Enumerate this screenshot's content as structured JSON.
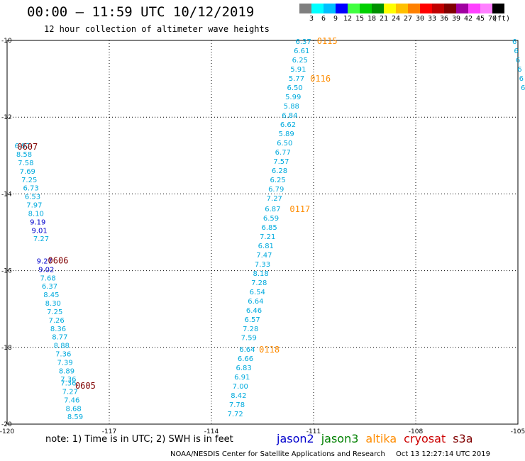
{
  "header": {
    "title": "00:00 – 11:59 UTC 10/12/2019",
    "subtitle": "12 hour collection of altimeter wave heights"
  },
  "legend": {
    "colors": [
      "#7f7f7f",
      "#00ffff",
      "#00bfff",
      "#0000ff",
      "#40ff40",
      "#00d000",
      "#009000",
      "#ffff00",
      "#ffc000",
      "#ff8000",
      "#ff0000",
      "#c00000",
      "#800000",
      "#a000a0",
      "#ff40ff",
      "#ff80ff",
      "#000000"
    ],
    "labels": [
      "3",
      "6",
      "9",
      "12",
      "15",
      "18",
      "21",
      "24",
      "27",
      "30",
      "33",
      "36",
      "39",
      "42",
      "45",
      "70",
      "(ft)"
    ]
  },
  "map": {
    "x_ticks": [
      "-120",
      "-117",
      "-114",
      "-111",
      "-108",
      "-105"
    ],
    "y_ticks": [
      "-10",
      "-12",
      "-14",
      "-16",
      "-18",
      "-20"
    ],
    "x_range": [
      -120,
      -105
    ],
    "y_range": [
      -20,
      -10
    ]
  },
  "colors": {
    "jason2": "#0000cc",
    "jason3": "#008000",
    "altika": "#ff8c00",
    "cryosat": "#cc0000",
    "s3a": "#800000",
    "obs_cyan": "#00aadd",
    "obs_blue": "#0000cc"
  },
  "passes": [
    {
      "label": "0607",
      "satellite": "s3a",
      "label_pos": {
        "lon": -119.4,
        "lat": -12.75
      },
      "points": [
        {
          "lon": -119.55,
          "lat": -12.74,
          "v": "6.97",
          "c": "obs_cyan"
        },
        {
          "lon": -119.5,
          "lat": -12.96,
          "v": "8.58",
          "c": "obs_cyan"
        },
        {
          "lon": -119.45,
          "lat": -13.18,
          "v": "7.58",
          "c": "obs_cyan"
        },
        {
          "lon": -119.4,
          "lat": -13.4,
          "v": "7.69",
          "c": "obs_cyan"
        },
        {
          "lon": -119.35,
          "lat": -13.62,
          "v": "7.25",
          "c": "obs_cyan"
        },
        {
          "lon": -119.3,
          "lat": -13.84,
          "v": "6.73",
          "c": "obs_cyan"
        },
        {
          "lon": -119.25,
          "lat": -14.06,
          "v": "6.53",
          "c": "obs_cyan"
        },
        {
          "lon": -119.2,
          "lat": -14.28,
          "v": "7.97",
          "c": "obs_cyan"
        },
        {
          "lon": -119.15,
          "lat": -14.5,
          "v": "8.10",
          "c": "obs_cyan"
        },
        {
          "lon": -119.1,
          "lat": -14.72,
          "v": "9.19",
          "c": "obs_blue"
        },
        {
          "lon": -119.05,
          "lat": -14.94,
          "v": "9.01",
          "c": "obs_blue"
        },
        {
          "lon": -119.0,
          "lat": -15.16,
          "v": "7.27",
          "c": "obs_cyan"
        }
      ]
    },
    {
      "label": "0606",
      "satellite": "s3a",
      "label_pos": {
        "lon": -118.5,
        "lat": -15.72
      },
      "points": [
        {
          "lon": -118.9,
          "lat": -15.74,
          "v": "9.27",
          "c": "obs_blue"
        },
        {
          "lon": -118.85,
          "lat": -15.96,
          "v": "9.02",
          "c": "obs_blue"
        },
        {
          "lon": -118.8,
          "lat": -16.18,
          "v": "7.68",
          "c": "obs_cyan"
        },
        {
          "lon": -118.75,
          "lat": -16.4,
          "v": "6.37",
          "c": "obs_cyan"
        },
        {
          "lon": -118.7,
          "lat": -16.62,
          "v": "8.45",
          "c": "obs_cyan"
        },
        {
          "lon": -118.65,
          "lat": -16.84,
          "v": "8.30",
          "c": "obs_cyan"
        },
        {
          "lon": -118.6,
          "lat": -17.06,
          "v": "7.25",
          "c": "obs_cyan"
        },
        {
          "lon": -118.55,
          "lat": -17.28,
          "v": "7.26",
          "c": "obs_cyan"
        },
        {
          "lon": -118.5,
          "lat": -17.5,
          "v": "8.36",
          "c": "obs_cyan"
        },
        {
          "lon": -118.45,
          "lat": -17.72,
          "v": "8.77",
          "c": "obs_cyan"
        },
        {
          "lon": -118.4,
          "lat": -17.94,
          "v": "8.88",
          "c": "obs_cyan"
        },
        {
          "lon": -118.35,
          "lat": -18.16,
          "v": "7.36",
          "c": "obs_cyan"
        },
        {
          "lon": -118.3,
          "lat": -18.38,
          "v": "7.39",
          "c": "obs_cyan"
        },
        {
          "lon": -118.25,
          "lat": -18.6,
          "v": "8.89",
          "c": "obs_cyan"
        }
      ]
    },
    {
      "label": "0605",
      "satellite": "s3a",
      "label_pos": {
        "lon": -117.7,
        "lat": -18.98
      },
      "points": [
        {
          "lon": -118.2,
          "lat": -18.82,
          "v": "7.36",
          "c": "obs_cyan"
        },
        {
          "lon": -118.2,
          "lat": -18.92,
          "v": "7.36",
          "c": "obs_cyan"
        },
        {
          "lon": -118.15,
          "lat": -19.14,
          "v": "7.27",
          "c": "obs_cyan"
        },
        {
          "lon": -118.1,
          "lat": -19.36,
          "v": "7.46",
          "c": "obs_cyan"
        },
        {
          "lon": -118.05,
          "lat": -19.58,
          "v": "8.68",
          "c": "obs_cyan"
        },
        {
          "lon": -118.0,
          "lat": -19.8,
          "v": "8.59",
          "c": "obs_cyan"
        }
      ]
    },
    {
      "label": "0115",
      "satellite": "altika",
      "label_pos": {
        "lon": -110.6,
        "lat": -10.0
      },
      "points": [
        {
          "lon": -111.3,
          "lat": -10.02,
          "v": "6.37",
          "c": "obs_cyan"
        },
        {
          "lon": -111.35,
          "lat": -10.26,
          "v": "6.61",
          "c": "obs_cyan"
        },
        {
          "lon": -111.4,
          "lat": -10.5,
          "v": "6.25",
          "c": "obs_cyan"
        },
        {
          "lon": -111.45,
          "lat": -10.74,
          "v": "5.91",
          "c": "obs_cyan"
        }
      ]
    },
    {
      "label": "0116",
      "satellite": "altika",
      "label_pos": {
        "lon": -110.8,
        "lat": -10.98
      },
      "points": [
        {
          "lon": -111.5,
          "lat": -10.98,
          "v": "5.77",
          "c": "obs_cyan"
        },
        {
          "lon": -111.55,
          "lat": -11.22,
          "v": "6.50",
          "c": "obs_cyan"
        },
        {
          "lon": -111.6,
          "lat": -11.46,
          "v": "5.99",
          "c": "obs_cyan"
        },
        {
          "lon": -111.65,
          "lat": -11.7,
          "v": "5.88",
          "c": "obs_cyan"
        },
        {
          "lon": -111.7,
          "lat": -11.94,
          "v": "6.84",
          "c": "obs_cyan"
        },
        {
          "lon": -111.75,
          "lat": -12.18,
          "v": "6.62",
          "c": "obs_cyan"
        },
        {
          "lon": -111.8,
          "lat": -12.42,
          "v": "5.89",
          "c": "obs_cyan"
        },
        {
          "lon": -111.85,
          "lat": -12.66,
          "v": "6.50",
          "c": "obs_cyan"
        },
        {
          "lon": -111.9,
          "lat": -12.9,
          "v": "6.77",
          "c": "obs_cyan"
        },
        {
          "lon": -111.95,
          "lat": -13.14,
          "v": "7.57",
          "c": "obs_cyan"
        },
        {
          "lon": -112.0,
          "lat": -13.38,
          "v": "6.28",
          "c": "obs_cyan"
        },
        {
          "lon": -112.05,
          "lat": -13.62,
          "v": "6.25",
          "c": "obs_cyan"
        },
        {
          "lon": -112.1,
          "lat": -13.86,
          "v": "6.79",
          "c": "obs_cyan"
        },
        {
          "lon": -112.15,
          "lat": -14.1,
          "v": "7.27",
          "c": "obs_cyan"
        }
      ]
    },
    {
      "label": "0117",
      "satellite": "altika",
      "label_pos": {
        "lon": -111.4,
        "lat": -14.38
      },
      "points": [
        {
          "lon": -112.2,
          "lat": -14.38,
          "v": "6.87",
          "c": "obs_cyan"
        },
        {
          "lon": -112.25,
          "lat": -14.62,
          "v": "6.59",
          "c": "obs_cyan"
        },
        {
          "lon": -112.3,
          "lat": -14.86,
          "v": "6.85",
          "c": "obs_cyan"
        },
        {
          "lon": -112.35,
          "lat": -15.1,
          "v": "7.21",
          "c": "obs_cyan"
        },
        {
          "lon": -112.4,
          "lat": -15.34,
          "v": "6.81",
          "c": "obs_cyan"
        },
        {
          "lon": -112.45,
          "lat": -15.58,
          "v": "7.47",
          "c": "obs_cyan"
        },
        {
          "lon": -112.5,
          "lat": -15.82,
          "v": "7.33",
          "c": "obs_cyan"
        },
        {
          "lon": -112.55,
          "lat": -16.06,
          "v": "8.18",
          "c": "obs_cyan"
        },
        {
          "lon": -112.6,
          "lat": -16.3,
          "v": "7.28",
          "c": "obs_cyan"
        },
        {
          "lon": -112.65,
          "lat": -16.54,
          "v": "6.54",
          "c": "obs_cyan"
        },
        {
          "lon": -112.7,
          "lat": -16.78,
          "v": "6.64",
          "c": "obs_cyan"
        },
        {
          "lon": -112.75,
          "lat": -17.02,
          "v": "6.46",
          "c": "obs_cyan"
        },
        {
          "lon": -112.8,
          "lat": -17.26,
          "v": "6.57",
          "c": "obs_cyan"
        },
        {
          "lon": -112.85,
          "lat": -17.5,
          "v": "7.28",
          "c": "obs_cyan"
        },
        {
          "lon": -112.9,
          "lat": -17.74,
          "v": "7.59",
          "c": "obs_cyan"
        }
      ]
    },
    {
      "label": "0118",
      "satellite": "altika",
      "label_pos": {
        "lon": -112.3,
        "lat": -18.04
      },
      "points": [
        {
          "lon": -112.95,
          "lat": -18.04,
          "v": "6.64",
          "c": "obs_cyan"
        },
        {
          "lon": -113.0,
          "lat": -18.28,
          "v": "6.66",
          "c": "obs_cyan"
        },
        {
          "lon": -113.05,
          "lat": -18.52,
          "v": "6.83",
          "c": "obs_cyan"
        },
        {
          "lon": -113.1,
          "lat": -18.76,
          "v": "6.91",
          "c": "obs_cyan"
        },
        {
          "lon": -113.15,
          "lat": -19.0,
          "v": "7.00",
          "c": "obs_cyan"
        },
        {
          "lon": -113.2,
          "lat": -19.24,
          "v": "8.42",
          "c": "obs_cyan"
        },
        {
          "lon": -113.25,
          "lat": -19.48,
          "v": "7.78",
          "c": "obs_cyan"
        },
        {
          "lon": -113.3,
          "lat": -19.72,
          "v": "7.72",
          "c": "obs_cyan"
        }
      ]
    },
    {
      "label": "",
      "satellite": "edge",
      "points": [
        {
          "lon": -105.1,
          "lat": -10.02,
          "v": "6",
          "c": "obs_cyan"
        },
        {
          "lon": -105.05,
          "lat": -10.26,
          "v": "6",
          "c": "obs_cyan"
        },
        {
          "lon": -105.0,
          "lat": -10.5,
          "v": "6",
          "c": "obs_cyan"
        },
        {
          "lon": -104.95,
          "lat": -10.74,
          "v": "6",
          "c": "obs_cyan"
        },
        {
          "lon": -104.9,
          "lat": -10.98,
          "v": "6",
          "c": "obs_cyan"
        },
        {
          "lon": -104.85,
          "lat": -11.22,
          "v": "6",
          "c": "obs_cyan"
        }
      ]
    }
  ],
  "note": "note: 1) Time is in UTC; 2) SWH is in feet",
  "satellites": [
    {
      "name": "jason2",
      "color": "#0000cc"
    },
    {
      "name": "jason3",
      "color": "#008000"
    },
    {
      "name": "altika",
      "color": "#ff8c00"
    },
    {
      "name": "cryosat",
      "color": "#cc0000"
    },
    {
      "name": "s3a",
      "color": "#800000"
    }
  ],
  "credit": {
    "org": "NOAA/NESDIS Center for Satellite Applications and Research",
    "timestamp": "Oct 13 12:27:14 UTC 2019"
  }
}
